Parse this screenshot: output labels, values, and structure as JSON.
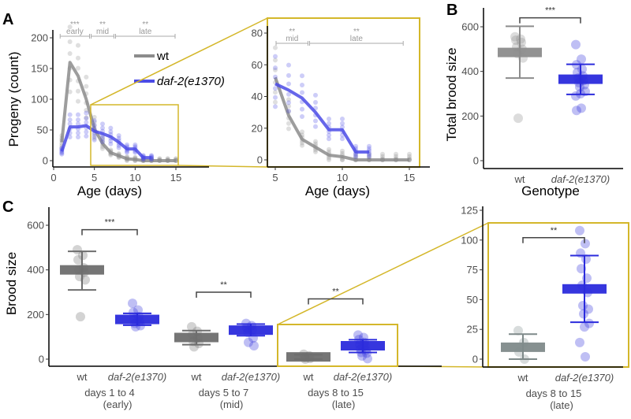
{
  "chart_data": [
    {
      "id": "A",
      "type": "line",
      "panel_label": "A",
      "xlabel": "Age (days)",
      "ylabel": "Progeny (count)",
      "xlim": [
        0,
        15
      ],
      "ylim": [
        0,
        200
      ],
      "xticks": [
        "0",
        "5",
        "10",
        "15"
      ],
      "yticks": [
        "0",
        "50",
        "100",
        "150",
        "200"
      ],
      "legend_position": "top-right",
      "series": [
        {
          "name": "wt",
          "color": "#8c8c8c",
          "x": [
            1,
            2,
            3,
            4,
            5,
            6,
            7,
            8,
            9,
            10,
            11,
            12,
            13,
            14,
            15
          ],
          "y": [
            30,
            160,
            138,
            100,
            52,
            28,
            13,
            8,
            3,
            2,
            0,
            0,
            0,
            0,
            0
          ]
        },
        {
          "name": "daf-2(e1370)",
          "color": "#4b4be6",
          "x": [
            1,
            2,
            3,
            4,
            5,
            6,
            7,
            8,
            9,
            10,
            11,
            12
          ],
          "y": [
            15,
            55,
            55,
            57,
            48,
            44,
            39,
            30,
            19,
            19,
            5,
            5
          ]
        }
      ],
      "significance": [
        {
          "stars": "***",
          "label": "early",
          "from": 0.7,
          "to": 4.5
        },
        {
          "stars": "**",
          "label": "mid",
          "from": 4.5,
          "to": 7.5
        },
        {
          "stars": "**",
          "label": "late",
          "from": 7.5,
          "to": 15
        }
      ],
      "highlight_box": {
        "x": [
          4.6,
          15.2
        ],
        "y": [
          -3,
          92
        ],
        "color": "#d4b72a"
      }
    },
    {
      "id": "A-zoom",
      "type": "line",
      "xlabel": "Age (days)",
      "xlim": [
        5,
        15
      ],
      "ylim": [
        0,
        80
      ],
      "xticks": [
        "5",
        "10",
        "15"
      ],
      "yticks": [
        "0",
        "20",
        "40",
        "60",
        "80"
      ],
      "series": [
        {
          "name": "wt",
          "color": "#8c8c8c",
          "x": [
            5,
            6,
            7,
            8,
            9,
            10,
            11,
            12,
            13,
            14,
            15
          ],
          "y": [
            52,
            28,
            13,
            8,
            3,
            2,
            0,
            0,
            0,
            0,
            0
          ]
        },
        {
          "name": "daf-2(e1370)",
          "color": "#4b4be6",
          "x": [
            5,
            6,
            7,
            8,
            9,
            10,
            11,
            12
          ],
          "y": [
            48,
            44,
            39,
            30,
            19,
            19,
            5,
            5
          ]
        }
      ],
      "significance": [
        {
          "stars": "**",
          "label": "mid",
          "from": 5,
          "to": 7.5
        },
        {
          "stars": "**",
          "label": "late",
          "from": 7.5,
          "to": 14.6
        }
      ]
    },
    {
      "id": "B",
      "type": "scatter",
      "panel_label": "B",
      "xlabel": "Genotype",
      "ylabel": "Total brood size",
      "ylim": [
        0,
        650
      ],
      "yticks": [
        "0",
        "200",
        "400",
        "600"
      ],
      "categories": [
        "wt",
        "daf-2(e1370)"
      ],
      "groups": [
        {
          "category": "wt",
          "color": "#8c8c8c",
          "mean": 485,
          "low": 370,
          "high": 602,
          "points": [
            555,
            545,
            540,
            530,
            510,
            500,
            480,
            460,
            190
          ]
        },
        {
          "category": "daf-2(e1370)",
          "color": "#2b2bdc",
          "mean": 365,
          "low": 297,
          "high": 432,
          "points": [
            520,
            455,
            430,
            410,
            395,
            380,
            370,
            360,
            350,
            340,
            330,
            310,
            300,
            290,
            235,
            225
          ]
        }
      ],
      "significance": [
        {
          "stars": "***",
          "from": 0,
          "to": 1,
          "y": 640
        }
      ]
    },
    {
      "id": "C",
      "type": "scatter",
      "panel_label": "C",
      "ylabel": "Brood size",
      "ylim": [
        -30,
        680
      ],
      "yticks": [
        "0",
        "200",
        "400",
        "600"
      ],
      "categories": [
        "wt",
        "daf-2(e1370)",
        "wt",
        "daf-2(e1370)",
        "wt",
        "daf-2(e1370)"
      ],
      "group_labels": [
        {
          "line1": "days 1 to 4",
          "line2": "(early)"
        },
        {
          "line1": "days 5 to 7",
          "line2": "(mid)"
        },
        {
          "line1": "days 8 to 15",
          "line2": "(late)"
        }
      ],
      "groups": [
        {
          "category": "wt",
          "color": "#6e6e6e",
          "mean": 400,
          "low": 310,
          "high": 483,
          "points": [
            490,
            465,
            445,
            410,
            400,
            390,
            370,
            355,
            190
          ]
        },
        {
          "category": "daf-2(e1370)",
          "color": "#2b2bdc",
          "mean": 178,
          "low": 152,
          "high": 205,
          "points": [
            250,
            220,
            210,
            190,
            180,
            170,
            160,
            150,
            145
          ]
        },
        {
          "category": "wt",
          "color": "#6e6e6e",
          "mean": 97,
          "low": 65,
          "high": 128,
          "points": [
            145,
            125,
            110,
            95,
            80,
            70,
            55
          ]
        },
        {
          "category": "daf-2(e1370)",
          "color": "#2b2bdc",
          "mean": 130,
          "low": 105,
          "high": 157,
          "points": [
            160,
            150,
            140,
            130,
            120,
            95,
            75,
            60
          ]
        },
        {
          "category": "wt",
          "color": "#6e6e6e",
          "mean": 10,
          "low": 0,
          "high": 20,
          "points": [
            22,
            15,
            8,
            3,
            0
          ]
        },
        {
          "category": "daf-2(e1370)",
          "color": "#2b2bdc",
          "mean": 60,
          "low": 30,
          "high": 87,
          "points": [
            108,
            97,
            88,
            75,
            66,
            60,
            45,
            40,
            30,
            27,
            14,
            2
          ]
        }
      ],
      "significance": [
        {
          "stars": "***",
          "from": 0,
          "to": 1,
          "y": 580
        },
        {
          "stars": "**",
          "from": 2,
          "to": 3,
          "y": 300
        },
        {
          "stars": "**",
          "from": 4,
          "to": 5,
          "y": 270
        }
      ],
      "highlight_box": {
        "groups": [
          4,
          5
        ],
        "color": "#d4b72a"
      }
    },
    {
      "id": "C-zoom",
      "type": "scatter",
      "ylim": [
        -5,
        125
      ],
      "yticks": [
        "0",
        "25",
        "50",
        "75",
        "100",
        "125"
      ],
      "categories": [
        "wt",
        "daf-2(e1370)"
      ],
      "group_labels": [
        {
          "line1": "days 8 to 15",
          "line2": "(late)"
        }
      ],
      "groups": [
        {
          "category": "wt",
          "color": "#7f8a8a",
          "mean": 10,
          "low": 0,
          "high": 21,
          "points": [
            24,
            14,
            6,
            0
          ]
        },
        {
          "category": "daf-2(e1370)",
          "color": "#2b2bdc",
          "mean": 59,
          "low": 31,
          "high": 87,
          "points": [
            108,
            97,
            89,
            84,
            76,
            68,
            62,
            56,
            45,
            42,
            38,
            30,
            27,
            14,
            2
          ]
        }
      ],
      "significance": [
        {
          "stars": "**",
          "from": 0,
          "to": 1,
          "y": 102
        }
      ]
    }
  ]
}
